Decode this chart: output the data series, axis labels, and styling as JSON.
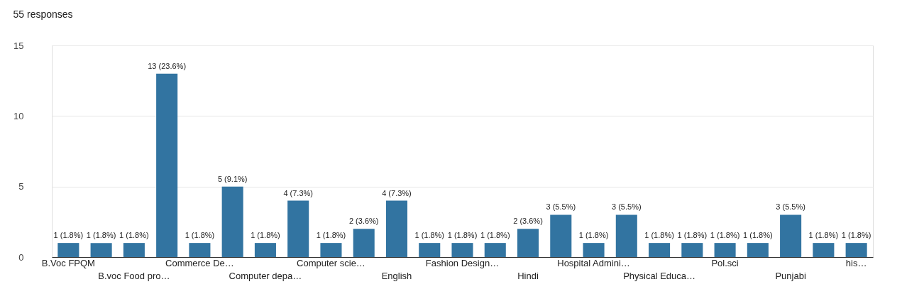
{
  "chart_data": {
    "type": "bar",
    "title": "55 responses",
    "categories": [
      "B.Voc FPQM",
      null,
      "B.voc Food pro…",
      null,
      "Commerce De…",
      null,
      "Computer depa…",
      null,
      "Computer scie…",
      null,
      "English",
      null,
      "Fashion Design…",
      null,
      "Hindi",
      null,
      "Hospital Admini…",
      null,
      "Physical Educa…",
      null,
      "Pol.sci",
      null,
      "Punjabi",
      null,
      "his…"
    ],
    "values": [
      1,
      1,
      1,
      13,
      1,
      5,
      1,
      4,
      1,
      2,
      4,
      1,
      1,
      1,
      2,
      3,
      1,
      3,
      1,
      1,
      1,
      1,
      3,
      1,
      1
    ],
    "value_labels": [
      "1 (1.8%)",
      "1 (1.8%)",
      "1 (1.8%)",
      "13 (23.6%)",
      "1 (1.8%)",
      "5 (9.1%)",
      "1 (1.8%)",
      "4 (7.3%)",
      "1 (1.8%)",
      "2 (3.6%)",
      "4 (7.3%)",
      "1 (1.8%)",
      "1 (1.8%)",
      "1 (1.8%)",
      "2 (3.6%)",
      "3 (5.5%)",
      "1 (1.8%)",
      "3 (5.5%)",
      "1 (1.8%)",
      "1 (1.8%)",
      "1 (1.8%)",
      "1 (1.8%)",
      "3 (5.5%)",
      "1 (1.8%)",
      "1 (1.8%)"
    ],
    "color": "#3274a1",
    "ylim": [
      0,
      15
    ],
    "yticks": [
      0,
      5,
      10,
      15
    ],
    "grid": "y"
  }
}
